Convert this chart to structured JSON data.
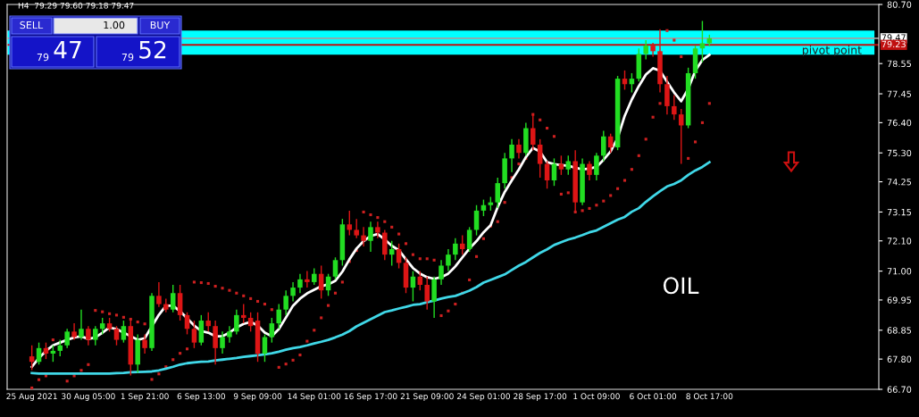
{
  "chart_data": {
    "type": "candlestick",
    "title": "H4  79.29 79.60 79.18 79.47",
    "categories": [
      "25 Aug 2021",
      null,
      null,
      null,
      null,
      null,
      null,
      null,
      "30 Aug 05:00",
      null,
      null,
      null,
      null,
      null,
      null,
      null,
      "1 Sep 21:00",
      null,
      null,
      null,
      null,
      null,
      null,
      null,
      "6 Sep 13:00",
      null,
      null,
      null,
      null,
      null,
      null,
      null,
      "9 Sep 09:00",
      null,
      null,
      null,
      null,
      null,
      null,
      null,
      "14 Sep 01:00",
      null,
      null,
      null,
      null,
      null,
      null,
      null,
      "16 Sep 17:00",
      null,
      null,
      null,
      null,
      null,
      null,
      null,
      "21 Sep 09:00",
      null,
      null,
      null,
      null,
      null,
      null,
      null,
      "24 Sep 01:00",
      null,
      null,
      null,
      null,
      null,
      null,
      null,
      "28 Sep 17:00",
      null,
      null,
      null,
      null,
      null,
      null,
      null,
      "1 Oct 09:00",
      null,
      null,
      null,
      null,
      null,
      null,
      null,
      "6 Oct 01:00",
      null,
      null,
      null,
      null,
      null,
      null,
      null,
      "8 Oct 17:00"
    ],
    "series": [
      {
        "colors": [
          "#dd1515",
          "#22dd22",
          "#dd1515",
          "#22dd22",
          "#22dd22",
          "#22dd22",
          "#dd1515",
          "#22dd22",
          "#dd1515",
          "#22dd22",
          "#22dd22",
          "#dd1515",
          "#dd1515",
          "#22dd22",
          "#dd1515",
          "#22dd22",
          "#dd1515",
          "#22dd22",
          "#dd1515",
          "#dd1515",
          "#22dd22",
          "#dd1515",
          "#dd1515",
          "#dd1515",
          "#22dd22",
          "#dd1515",
          "#dd1515",
          "#22dd22",
          "#22dd22",
          "#22dd22",
          "#dd1515",
          "#dd1515",
          "#dd1515",
          "#22dd22",
          "#22dd22",
          "#22dd22",
          "#22dd22",
          "#22dd22",
          "#22dd22",
          "#dd1515",
          "#22dd22",
          "#dd1515",
          "#22dd22",
          "#22dd22",
          "#22dd22",
          "#dd1515",
          "#dd1515",
          "#dd1515",
          "#22dd22",
          "#dd1515",
          "#dd1515",
          "#22dd22",
          "#dd1515",
          "#dd1515",
          "#22dd22",
          "#dd1515",
          "#dd1515",
          "#22dd22",
          "#22dd22",
          "#22dd22",
          "#22dd22",
          "#dd1515",
          "#22dd22",
          "#22dd22",
          "#22dd22",
          "#22dd22",
          "#22dd22",
          "#22dd22",
          "#22dd22",
          "#dd1515",
          "#22dd22",
          "#dd1515",
          "#dd1515",
          "#dd1515",
          "#22dd22",
          "#dd1515",
          "#22dd22",
          "#dd1515",
          "#22dd22",
          "#dd1515",
          "#22dd22",
          "#22dd22",
          "#dd1515",
          "#22dd22",
          "#dd1515",
          "#22dd22",
          "#22dd22",
          "#22dd22",
          "#dd1515",
          "#dd1515",
          "#dd1515",
          "#dd1515",
          "#dd1515",
          "#22dd22",
          "#22dd22",
          "#22dd22",
          "#22dd22"
        ],
        "ohlc": [
          [
            67.9,
            68.3,
            67.4,
            67.7
          ],
          [
            67.7,
            68.4,
            67.6,
            68.2
          ],
          [
            68.2,
            68.4,
            67.8,
            68.0
          ],
          [
            68.0,
            68.3,
            67.7,
            68.1
          ],
          [
            68.1,
            68.5,
            67.9,
            68.3
          ],
          [
            68.3,
            68.9,
            68.2,
            68.8
          ],
          [
            68.8,
            69.1,
            68.5,
            68.6
          ],
          [
            68.6,
            69.6,
            68.5,
            68.9
          ],
          [
            68.9,
            69.0,
            68.3,
            68.5
          ],
          [
            68.5,
            69.0,
            68.3,
            68.9
          ],
          [
            68.9,
            69.3,
            68.7,
            69.1
          ],
          [
            69.1,
            69.3,
            68.8,
            68.9
          ],
          [
            68.9,
            69.0,
            68.3,
            68.5
          ],
          [
            68.5,
            69.2,
            68.4,
            69.0
          ],
          [
            69.0,
            69.2,
            67.2,
            67.6
          ],
          [
            67.6,
            68.7,
            67.3,
            68.5
          ],
          [
            68.5,
            68.7,
            68.0,
            68.2
          ],
          [
            68.2,
            70.2,
            68.1,
            70.1
          ],
          [
            70.1,
            70.6,
            69.7,
            69.8
          ],
          [
            69.8,
            70.0,
            69.5,
            69.6
          ],
          [
            69.6,
            70.5,
            69.5,
            70.2
          ],
          [
            70.2,
            70.5,
            69.2,
            69.4
          ],
          [
            69.4,
            69.5,
            68.7,
            68.9
          ],
          [
            68.9,
            69.2,
            68.2,
            68.4
          ],
          [
            68.4,
            69.4,
            68.3,
            69.2
          ],
          [
            69.2,
            69.5,
            68.8,
            69.0
          ],
          [
            69.0,
            69.2,
            67.6,
            68.2
          ],
          [
            68.2,
            68.8,
            68.0,
            68.6
          ],
          [
            68.6,
            69.0,
            68.4,
            68.8
          ],
          [
            68.8,
            69.6,
            68.7,
            69.4
          ],
          [
            69.4,
            69.8,
            69.1,
            69.3
          ],
          [
            69.3,
            69.5,
            68.8,
            69.0
          ],
          [
            69.2,
            69.5,
            67.7,
            68.0
          ],
          [
            68.0,
            68.7,
            67.7,
            68.6
          ],
          [
            68.6,
            69.3,
            68.4,
            69.1
          ],
          [
            69.1,
            69.8,
            68.9,
            69.6
          ],
          [
            69.6,
            70.3,
            69.4,
            70.1
          ],
          [
            70.1,
            70.6,
            69.9,
            70.4
          ],
          [
            70.4,
            70.9,
            70.2,
            70.7
          ],
          [
            70.7,
            71.0,
            70.4,
            70.6
          ],
          [
            70.6,
            71.1,
            70.5,
            70.9
          ],
          [
            70.9,
            71.2,
            70.0,
            70.3
          ],
          [
            70.3,
            70.9,
            70.1,
            70.8
          ],
          [
            70.8,
            71.5,
            70.7,
            71.4
          ],
          [
            71.4,
            72.9,
            71.2,
            72.7
          ],
          [
            72.7,
            73.2,
            72.3,
            72.5
          ],
          [
            72.5,
            72.9,
            72.2,
            72.3
          ],
          [
            72.3,
            72.6,
            71.9,
            72.1
          ],
          [
            72.1,
            72.8,
            71.7,
            72.6
          ],
          [
            72.6,
            72.8,
            72.2,
            72.4
          ],
          [
            72.4,
            72.5,
            71.4,
            71.6
          ],
          [
            71.6,
            72.1,
            71.2,
            71.8
          ],
          [
            71.8,
            72.0,
            71.1,
            71.3
          ],
          [
            71.3,
            71.5,
            70.2,
            70.4
          ],
          [
            70.4,
            71.0,
            69.9,
            70.8
          ],
          [
            70.8,
            71.0,
            70.3,
            70.5
          ],
          [
            70.5,
            70.8,
            69.6,
            69.9
          ],
          [
            69.9,
            70.8,
            69.3,
            70.7
          ],
          [
            70.7,
            71.4,
            70.5,
            71.2
          ],
          [
            71.2,
            71.8,
            71.0,
            71.6
          ],
          [
            71.6,
            72.2,
            71.4,
            72.0
          ],
          [
            72.0,
            72.3,
            71.6,
            71.8
          ],
          [
            71.8,
            72.6,
            71.7,
            72.5
          ],
          [
            72.5,
            73.4,
            72.3,
            73.2
          ],
          [
            73.2,
            73.6,
            73.0,
            73.4
          ],
          [
            73.4,
            73.7,
            73.2,
            73.5
          ],
          [
            73.5,
            74.4,
            73.3,
            74.2
          ],
          [
            74.2,
            75.3,
            74.0,
            75.1
          ],
          [
            75.1,
            75.8,
            74.6,
            75.6
          ],
          [
            75.6,
            75.8,
            75.1,
            75.3
          ],
          [
            75.3,
            76.4,
            75.2,
            76.2
          ],
          [
            76.2,
            76.7,
            75.4,
            75.6
          ],
          [
            75.6,
            75.8,
            74.4,
            74.9
          ],
          [
            74.9,
            75.0,
            74.0,
            74.3
          ],
          [
            74.3,
            75.1,
            74.1,
            74.9
          ],
          [
            74.9,
            75.2,
            74.5,
            74.7
          ],
          [
            74.7,
            75.2,
            74.5,
            75.0
          ],
          [
            75.0,
            75.4,
            73.2,
            73.5
          ],
          [
            73.5,
            75.1,
            73.4,
            74.9
          ],
          [
            74.9,
            75.0,
            74.3,
            74.5
          ],
          [
            74.5,
            75.3,
            74.3,
            75.2
          ],
          [
            75.2,
            76.1,
            75.0,
            75.9
          ],
          [
            75.9,
            76.0,
            75.3,
            75.5
          ],
          [
            75.5,
            78.1,
            75.4,
            78.0
          ],
          [
            78.0,
            78.3,
            77.6,
            77.8
          ],
          [
            77.8,
            78.2,
            77.5,
            78.0
          ],
          [
            78.0,
            79.1,
            77.9,
            78.9
          ],
          [
            78.9,
            79.4,
            78.7,
            79.2
          ],
          [
            79.2,
            79.3,
            78.8,
            79.0
          ],
          [
            79.0,
            79.8,
            77.5,
            77.8
          ],
          [
            77.8,
            78.1,
            76.7,
            77.0
          ],
          [
            77.0,
            77.4,
            76.5,
            76.7
          ],
          [
            76.7,
            76.9,
            74.9,
            76.3
          ],
          [
            76.3,
            78.4,
            76.2,
            78.2
          ],
          [
            78.2,
            79.2,
            78.0,
            79.1
          ],
          [
            79.1,
            80.1,
            78.6,
            79.29
          ],
          [
            79.29,
            79.6,
            79.18,
            79.47
          ]
        ]
      },
      {
        "type": "line",
        "color": "#ffffff",
        "values": [
          67.52,
          67.84,
          68.1,
          68.3,
          68.4,
          68.5,
          68.59,
          68.63,
          68.53,
          68.59,
          68.76,
          68.95,
          68.89,
          68.76,
          68.63,
          68.5,
          68.56,
          68.99,
          69.41,
          69.74,
          69.74,
          69.54,
          69.28,
          69.02,
          68.82,
          68.76,
          68.63,
          68.63,
          68.76,
          68.95,
          69.08,
          69.15,
          69.02,
          68.76,
          68.63,
          68.89,
          69.31,
          69.74,
          70.0,
          70.19,
          70.32,
          70.45,
          70.52,
          70.65,
          70.98,
          71.43,
          71.82,
          72.09,
          72.28,
          72.35,
          72.15,
          71.92,
          71.76,
          71.43,
          71.11,
          70.91,
          70.78,
          70.72,
          70.78,
          70.91,
          71.17,
          71.5,
          71.82,
          72.09,
          72.41,
          72.67,
          73.33,
          73.88,
          74.3,
          74.7,
          75.15,
          75.48,
          75.35,
          74.96,
          74.89,
          74.86,
          74.83,
          74.76,
          74.7,
          74.73,
          74.79,
          75.05,
          75.35,
          75.84,
          76.65,
          77.24,
          77.73,
          78.15,
          78.38,
          78.29,
          77.89,
          77.5,
          77.18,
          77.63,
          78.29,
          78.68,
          78.87
        ]
      },
      {
        "type": "line",
        "color": "#40d8e8",
        "values": [
          67.29,
          67.27,
          67.27,
          67.27,
          67.27,
          67.27,
          67.27,
          67.27,
          67.27,
          67.27,
          67.27,
          67.27,
          67.29,
          67.3,
          67.32,
          67.33,
          67.34,
          67.35,
          67.39,
          67.45,
          67.52,
          67.6,
          67.65,
          67.68,
          67.7,
          67.71,
          67.75,
          67.78,
          67.81,
          67.84,
          67.88,
          67.91,
          67.94,
          67.97,
          68.01,
          68.07,
          68.14,
          68.2,
          68.24,
          68.3,
          68.37,
          68.43,
          68.5,
          68.59,
          68.69,
          68.82,
          68.99,
          69.12,
          69.25,
          69.38,
          69.51,
          69.57,
          69.64,
          69.7,
          69.77,
          69.8,
          69.87,
          69.93,
          70.0,
          70.06,
          70.1,
          70.19,
          70.29,
          70.42,
          70.58,
          70.68,
          70.78,
          70.88,
          71.04,
          71.2,
          71.33,
          71.5,
          71.66,
          71.79,
          71.95,
          72.05,
          72.15,
          72.22,
          72.31,
          72.41,
          72.48,
          72.61,
          72.74,
          72.87,
          72.97,
          73.16,
          73.29,
          73.52,
          73.72,
          73.91,
          74.08,
          74.17,
          74.3,
          74.5,
          74.66,
          74.79,
          74.96
        ]
      },
      {
        "type": "scatter",
        "color": "#cc2020",
        "marker": "square",
        "values": [
          66.75,
          67.05,
          67.19,
          68.5,
          68.4,
          67.0,
          67.19,
          67.39,
          67.6,
          69.57,
          69.52,
          69.45,
          69.4,
          69.32,
          69.25,
          69.15,
          69.08,
          67.06,
          67.26,
          67.52,
          67.78,
          68.01,
          68.17,
          70.6,
          70.58,
          70.55,
          70.45,
          70.38,
          70.3,
          70.2,
          70.1,
          70.0,
          69.9,
          69.8,
          69.6,
          67.5,
          67.62,
          67.76,
          67.95,
          68.45,
          68.85,
          69.3,
          69.75,
          70.2,
          70.6,
          71.35,
          71.75,
          73.15,
          73.05,
          72.95,
          72.8,
          72.6,
          72.35,
          72.0,
          71.6,
          71.45,
          71.45,
          71.4,
          69.38,
          69.55,
          69.8,
          70.2,
          70.68,
          71.53,
          72.18,
          72.64,
          72.8,
          73.5,
          74.4,
          74.9,
          75.1,
          76.7,
          76.5,
          76.2,
          75.9,
          73.8,
          73.85,
          73.15,
          73.2,
          73.28,
          73.4,
          73.55,
          73.75,
          74.0,
          74.3,
          74.7,
          75.2,
          75.8,
          76.6,
          77.1,
          79.75,
          79.4,
          78.8,
          75.1,
          75.7,
          76.4,
          77.1
        ]
      }
    ],
    "ylim": [
      66.7,
      80.7
    ],
    "yticks": [
      {
        "value": 66.7,
        "label": "66.70"
      },
      {
        "value": 67.8,
        "label": "67.80"
      },
      {
        "value": 68.85,
        "label": "68.85"
      },
      {
        "value": 69.95,
        "label": "69.95"
      },
      {
        "value": 71.0,
        "label": "71.00"
      },
      {
        "value": 72.1,
        "label": "72.10"
      },
      {
        "value": 73.15,
        "label": "73.15"
      },
      {
        "value": 74.25,
        "label": "74.25"
      },
      {
        "value": 75.3,
        "label": "75.30"
      },
      {
        "value": 76.4,
        "label": "76.40"
      },
      {
        "value": 77.45,
        "label": "77.45"
      },
      {
        "value": 78.55,
        "label": "78.55"
      },
      {
        "value": 80.7,
        "label": "80.70"
      }
    ],
    "bands": [
      {
        "axis": "y",
        "from": 78.87,
        "to": 79.75,
        "color": "#00ffff"
      }
    ],
    "ref_lines": [
      {
        "axis": "y",
        "value": 79.47,
        "label": "79.47",
        "color": "#a0a0a0"
      },
      {
        "axis": "y",
        "value": 79.23,
        "label": "79.23",
        "color": "#c01010"
      }
    ],
    "annotations": [
      "pivot point",
      "OIL",
      "SELL",
      "1.00",
      "BUY",
      "79",
      "47",
      "79",
      "52"
    ],
    "grid": false,
    "legend": false
  }
}
